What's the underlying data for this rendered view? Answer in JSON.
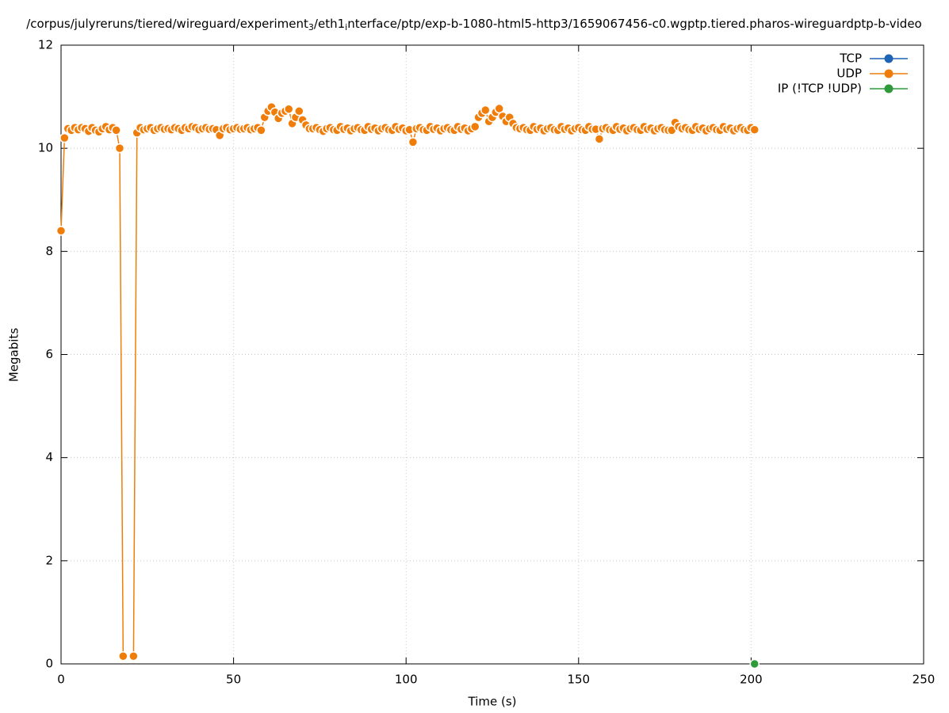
{
  "chart_data": {
    "type": "line",
    "title_parts": [
      "/corpus/julyreruns/tiered/wireguard/experiment",
      "3",
      "/eth1",
      "i",
      "nterface/ptp/exp-b-1080-html5-http3/1659067456-c0.wgptp.tiered.pharos-wireguardptp-b-video"
    ],
    "x_label": "Time (s)",
    "y_label": "Megabits",
    "xlim": [
      0,
      250
    ],
    "xticks": [
      0,
      50,
      100,
      150,
      200,
      250
    ],
    "ylim": [
      0,
      12
    ],
    "yticks": [
      0,
      2,
      4,
      6,
      8,
      10,
      12
    ],
    "grid": true,
    "legend": "top-right",
    "series": [
      {
        "name": "TCP",
        "color": "#1f64b4",
        "x": [],
        "values": []
      },
      {
        "name": "UDP",
        "color": "#f07d0a",
        "x": [
          0,
          1,
          2,
          3,
          4,
          5,
          6,
          7,
          8,
          9,
          10,
          11,
          12,
          13,
          14,
          15,
          16,
          17,
          18,
          19,
          20,
          21,
          22,
          23,
          24,
          25,
          26,
          27,
          28,
          29,
          30,
          31,
          32,
          33,
          34,
          35,
          36,
          37,
          38,
          39,
          40,
          41,
          42,
          43,
          44,
          45,
          46,
          47,
          48,
          49,
          50,
          51,
          52,
          53,
          54,
          55,
          56,
          57,
          58,
          59,
          60,
          61,
          62,
          63,
          64,
          65,
          66,
          67,
          68,
          69,
          70,
          71,
          72,
          73,
          74,
          75,
          76,
          77,
          78,
          79,
          80,
          81,
          82,
          83,
          84,
          85,
          86,
          87,
          88,
          89,
          90,
          91,
          92,
          93,
          94,
          95,
          96,
          97,
          98,
          99,
          100,
          101,
          102,
          103,
          104,
          105,
          106,
          107,
          108,
          109,
          110,
          111,
          112,
          113,
          114,
          115,
          116,
          117,
          118,
          119,
          120,
          121,
          122,
          123,
          124,
          125,
          126,
          127,
          128,
          129,
          130,
          131,
          132,
          133,
          134,
          135,
          136,
          137,
          138,
          139,
          140,
          141,
          142,
          143,
          144,
          145,
          146,
          147,
          148,
          149,
          150,
          151,
          152,
          153,
          154,
          155,
          156,
          157,
          158,
          159,
          160,
          161,
          162,
          163,
          164,
          165,
          166,
          167,
          168,
          169,
          170,
          171,
          172,
          173,
          174,
          175,
          176,
          177,
          178,
          179,
          180,
          181,
          182,
          183,
          184,
          185,
          186,
          187,
          188,
          189,
          190,
          191,
          192,
          193,
          194,
          195,
          196,
          197,
          198,
          199,
          200,
          201
        ],
        "values": [
          8.4,
          10.2,
          10.38,
          10.35,
          10.4,
          10.36,
          10.4,
          10.38,
          10.33,
          10.4,
          10.35,
          10.32,
          10.38,
          10.42,
          10.36,
          10.4,
          10.35,
          10.0,
          0.15,
          null,
          null,
          0.15,
          10.3,
          10.4,
          10.36,
          10.38,
          10.4,
          10.35,
          10.38,
          10.4,
          10.37,
          10.38,
          10.36,
          10.4,
          10.38,
          10.35,
          10.4,
          10.38,
          10.42,
          10.4,
          10.36,
          10.38,
          10.4,
          10.37,
          10.38,
          10.36,
          10.25,
          10.38,
          10.4,
          10.36,
          10.38,
          10.4,
          10.37,
          10.38,
          10.4,
          10.36,
          10.38,
          10.4,
          10.35,
          10.6,
          10.72,
          10.8,
          10.7,
          10.58,
          10.68,
          10.72,
          10.76,
          10.48,
          10.6,
          10.72,
          10.55,
          10.45,
          10.38,
          10.38,
          10.4,
          10.36,
          10.33,
          10.38,
          10.4,
          10.36,
          10.35,
          10.42,
          10.37,
          10.39,
          10.34,
          10.38,
          10.4,
          10.36,
          10.35,
          10.42,
          10.37,
          10.39,
          10.34,
          10.38,
          10.4,
          10.36,
          10.35,
          10.42,
          10.37,
          10.39,
          10.34,
          10.36,
          10.12,
          10.38,
          10.4,
          10.36,
          10.35,
          10.42,
          10.37,
          10.39,
          10.34,
          10.38,
          10.4,
          10.36,
          10.35,
          10.42,
          10.37,
          10.39,
          10.34,
          10.38,
          10.42,
          10.6,
          10.68,
          10.74,
          10.52,
          10.6,
          10.7,
          10.77,
          10.62,
          10.52,
          10.6,
          10.48,
          10.4,
          10.38,
          10.4,
          10.36,
          10.35,
          10.42,
          10.37,
          10.39,
          10.34,
          10.38,
          10.4,
          10.36,
          10.35,
          10.42,
          10.37,
          10.39,
          10.34,
          10.38,
          10.4,
          10.36,
          10.35,
          10.42,
          10.37,
          10.37,
          10.18,
          10.38,
          10.4,
          10.36,
          10.35,
          10.42,
          10.37,
          10.39,
          10.34,
          10.38,
          10.4,
          10.36,
          10.35,
          10.42,
          10.37,
          10.39,
          10.34,
          10.38,
          10.4,
          10.36,
          10.35,
          10.35,
          10.5,
          10.42,
          10.38,
          10.4,
          10.36,
          10.35,
          10.42,
          10.37,
          10.39,
          10.34,
          10.38,
          10.4,
          10.36,
          10.35,
          10.42,
          10.37,
          10.39,
          10.34,
          10.38,
          10.4,
          10.36,
          10.35,
          10.4,
          10.36
        ]
      },
      {
        "name": "IP (!TCP  !UDP)",
        "color": "#2e9a3a",
        "x": [
          201
        ],
        "values": [
          0
        ]
      }
    ]
  }
}
